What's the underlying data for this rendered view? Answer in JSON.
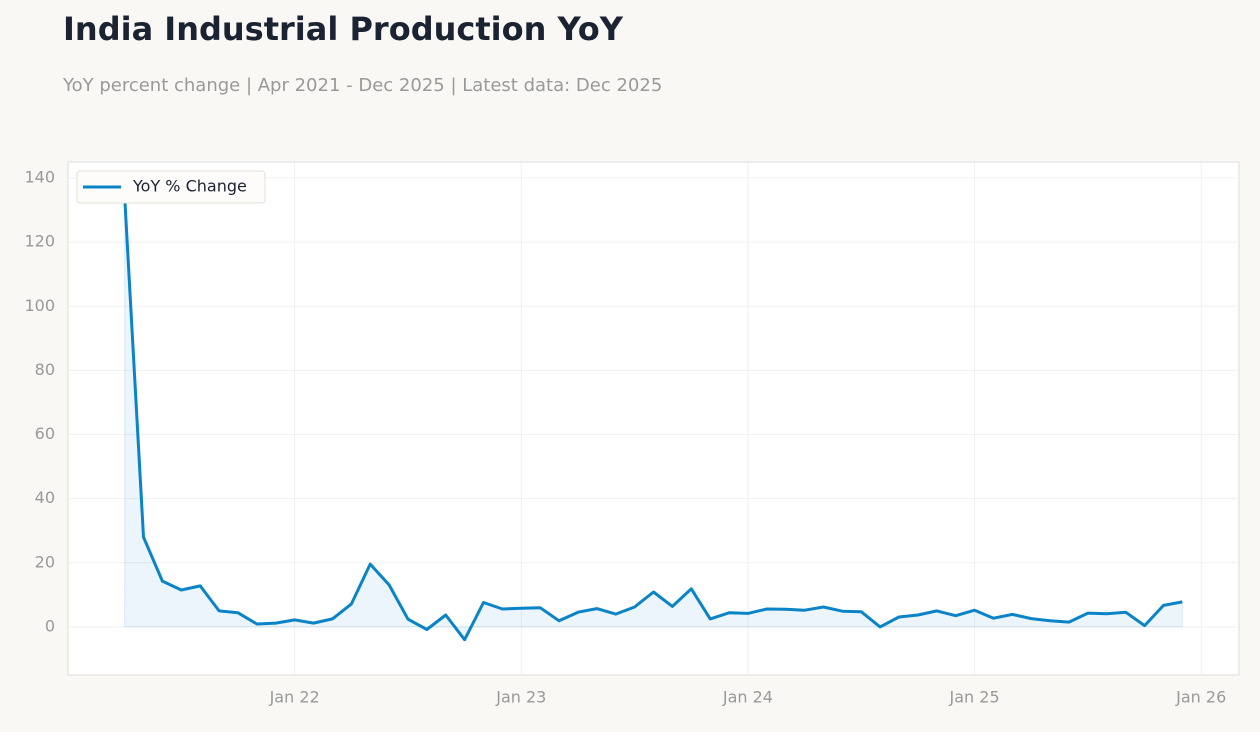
{
  "chart_data": {
    "type": "line",
    "title": "India Industrial Production YoY",
    "subtitle": "YoY percent change | Apr 2021 - Dec 2025 | Latest data: Dec 2025",
    "x": [
      "2021-04",
      "2021-05",
      "2021-06",
      "2021-07",
      "2021-08",
      "2021-09",
      "2021-10",
      "2021-11",
      "2021-12",
      "2022-01",
      "2022-02",
      "2022-03",
      "2022-04",
      "2022-05",
      "2022-06",
      "2022-07",
      "2022-08",
      "2022-09",
      "2022-10",
      "2022-11",
      "2022-12",
      "2023-01",
      "2023-02",
      "2023-03",
      "2023-04",
      "2023-05",
      "2023-06",
      "2023-07",
      "2023-08",
      "2023-09",
      "2023-10",
      "2023-11",
      "2023-12",
      "2024-01",
      "2024-02",
      "2024-03",
      "2024-04",
      "2024-05",
      "2024-06",
      "2024-07",
      "2024-08",
      "2024-09",
      "2024-10",
      "2024-11",
      "2024-12",
      "2025-01",
      "2025-02",
      "2025-03",
      "2025-04",
      "2025-05",
      "2025-06",
      "2025-07",
      "2025-08",
      "2025-09",
      "2025-10",
      "2025-11",
      "2025-12"
    ],
    "series": [
      {
        "name": "YoY % Change",
        "color": "#0a84c6",
        "values": [
          134,
          28,
          14.3,
          11.5,
          12.8,
          5.0,
          4.4,
          0.9,
          1.2,
          2.2,
          1.2,
          2.5,
          7.1,
          19.6,
          13.1,
          2.4,
          -0.8,
          3.7,
          -4.0,
          7.6,
          5.6,
          5.8,
          6.0,
          1.9,
          4.6,
          5.7,
          4.0,
          6.2,
          10.9,
          6.4,
          11.9,
          2.5,
          4.4,
          4.2,
          5.6,
          5.5,
          5.2,
          6.2,
          4.9,
          4.7,
          0,
          3.1,
          3.7,
          5.0,
          3.5,
          5.2,
          2.7,
          3.9,
          2.6,
          1.9,
          1.5,
          4.3,
          4.1,
          4.6,
          0.4,
          6.7,
          7.8
        ]
      }
    ],
    "xlim": [
      "2021-01",
      "2026-03"
    ],
    "xticks": [
      {
        "value": "2022-01",
        "label": "Jan 22"
      },
      {
        "value": "2023-01",
        "label": "Jan 23"
      },
      {
        "value": "2024-01",
        "label": "Jan 24"
      },
      {
        "value": "2025-01",
        "label": "Jan 25"
      },
      {
        "value": "2026-01",
        "label": "Jan 26"
      }
    ],
    "ylim": [
      -15,
      145
    ],
    "yticks": [
      0,
      20,
      40,
      60,
      80,
      100,
      120,
      140
    ],
    "grid": true,
    "fill_area": true,
    "legend": "upper-left"
  }
}
